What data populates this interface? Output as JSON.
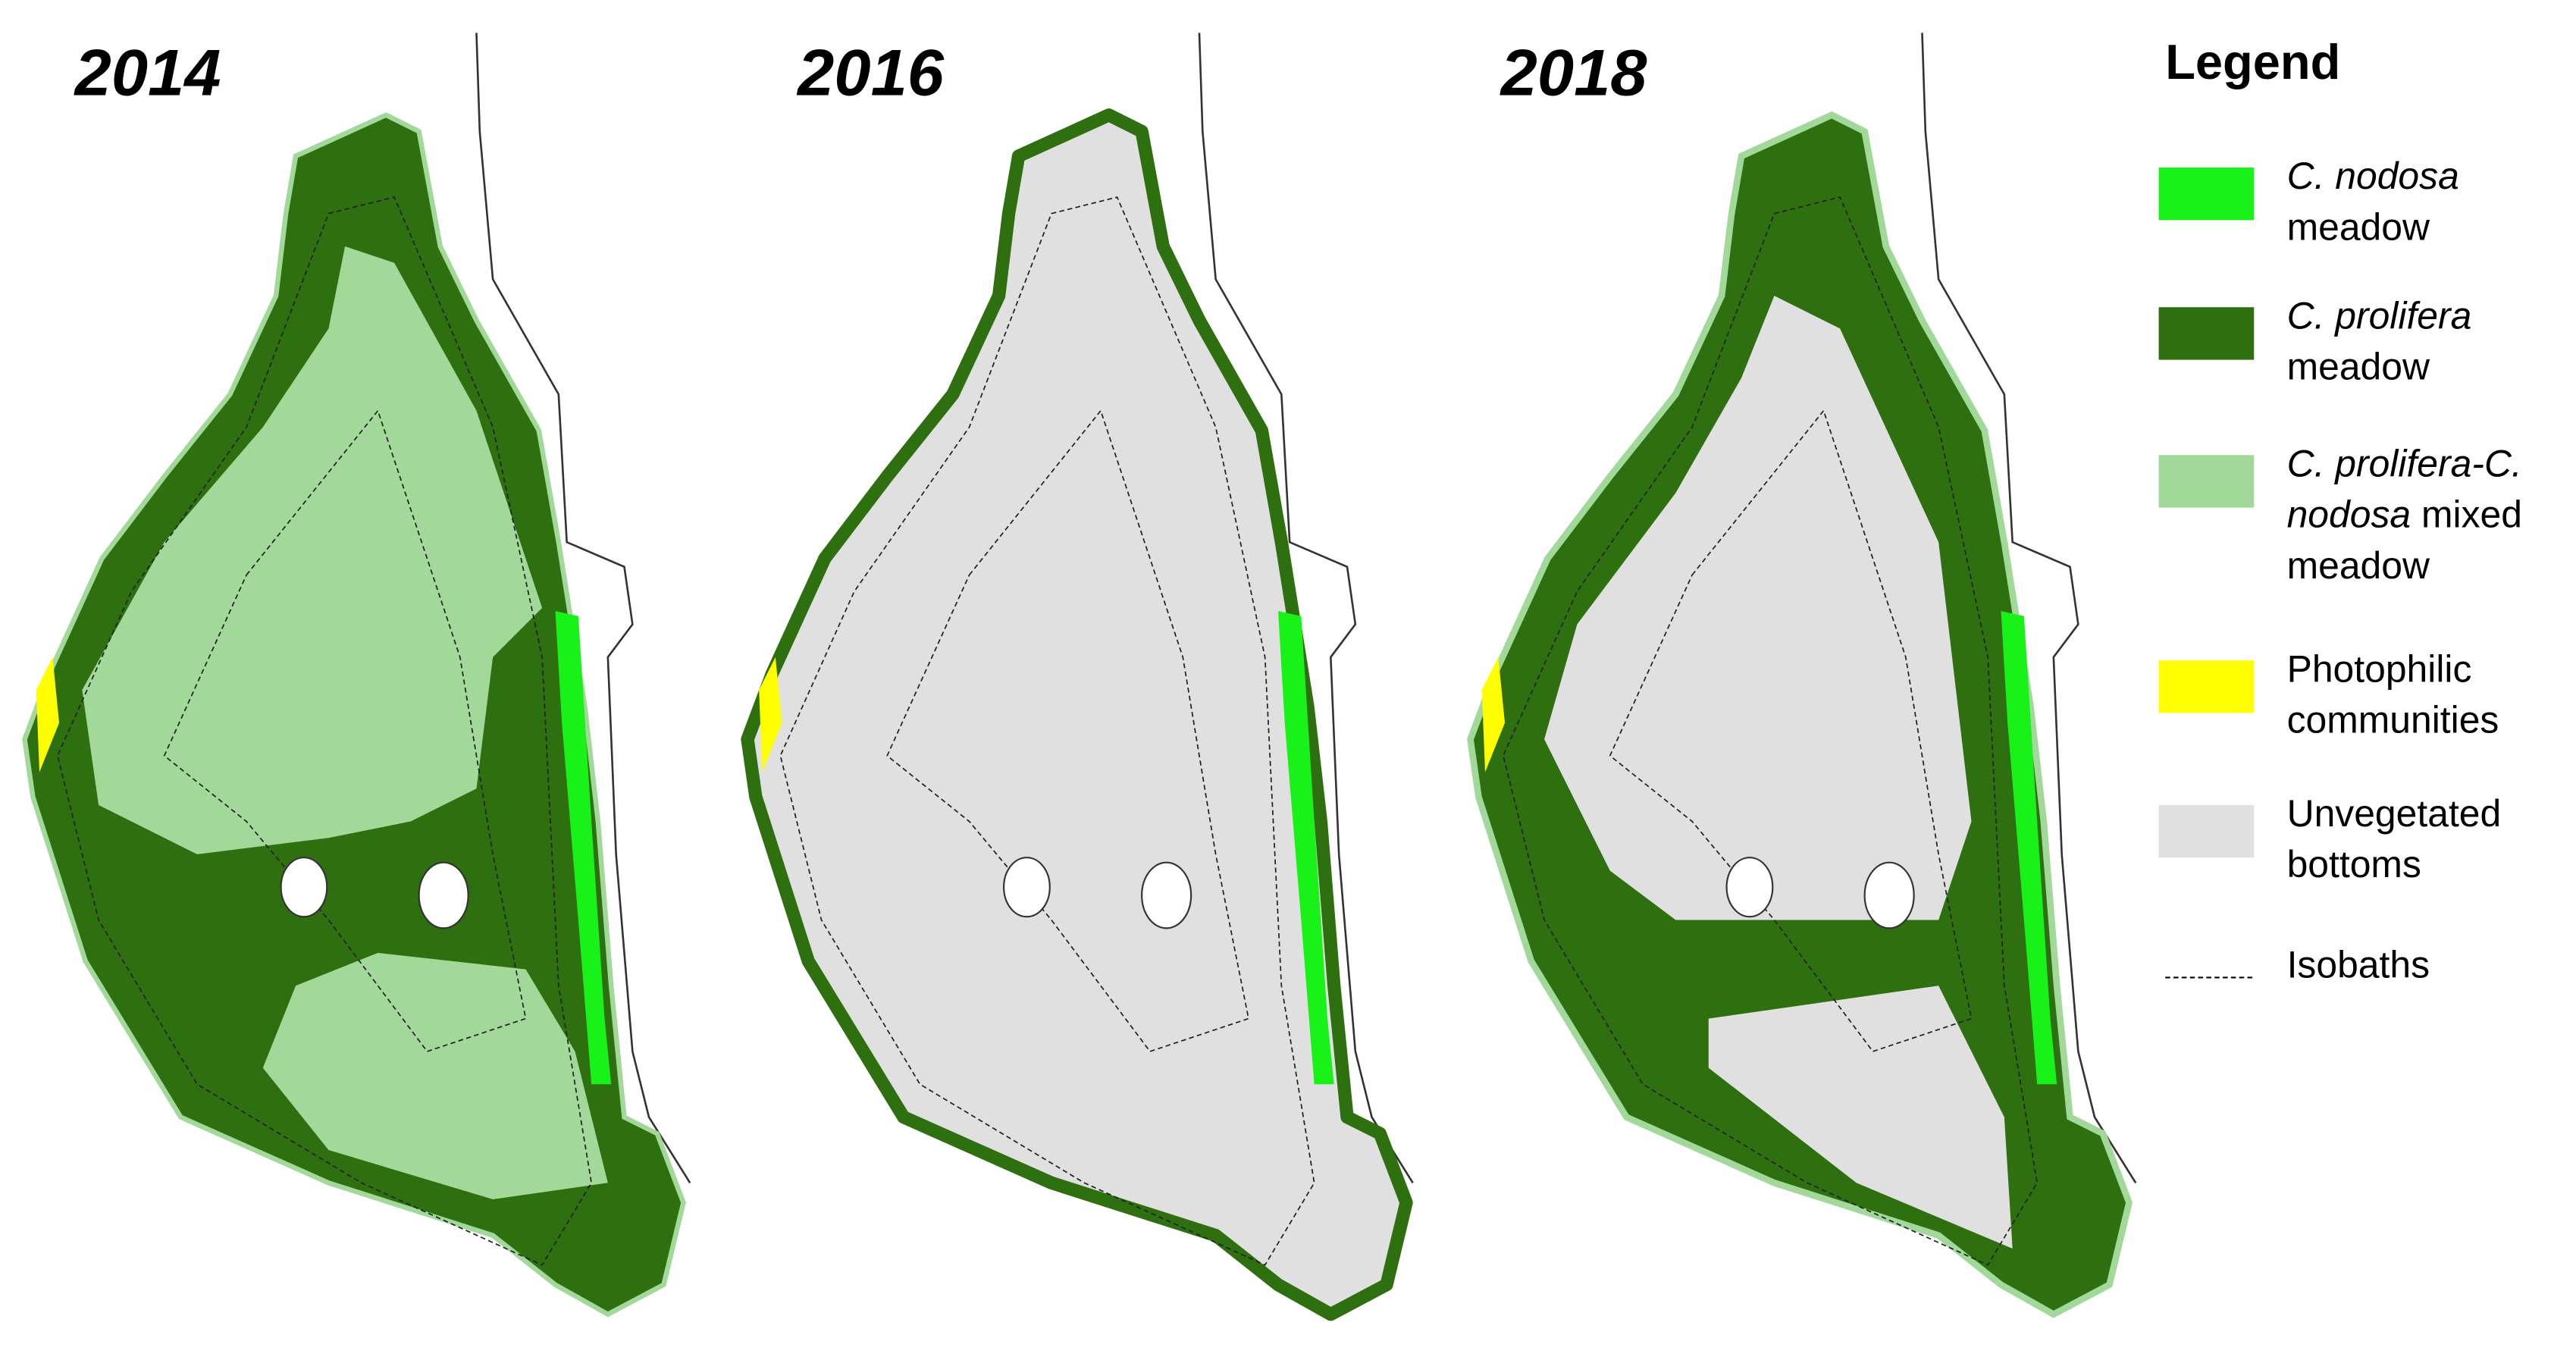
{
  "maps": [
    {
      "title": "2014"
    },
    {
      "title": "2016"
    },
    {
      "title": "2018"
    }
  ],
  "legend": {
    "title": "Legend",
    "items": [
      {
        "label": [
          {
            "text": "C. nodosa",
            "italic": true
          },
          {
            "text": "meadow"
          }
        ],
        "color": "#19f219"
      },
      {
        "label": [
          {
            "text": "C. prolifera",
            "italic": true
          },
          {
            "text": "meadow"
          }
        ],
        "color": "#2e7010"
      },
      {
        "label": [
          {
            "text": "C. prolifera-C. nodosa",
            "italic": true
          },
          {
            "text": "mixed meadow"
          }
        ],
        "color": "#a3d89b"
      },
      {
        "label": [
          {
            "text": "Photophilic communities"
          }
        ],
        "color": "#ffff00"
      },
      {
        "label": [
          {
            "text": "Unvegetated bottoms"
          }
        ],
        "color": "#e0e0e0"
      },
      {
        "label": [
          {
            "text": "Isobaths"
          }
        ],
        "color": "#000000",
        "line": "dashed"
      }
    ]
  }
}
